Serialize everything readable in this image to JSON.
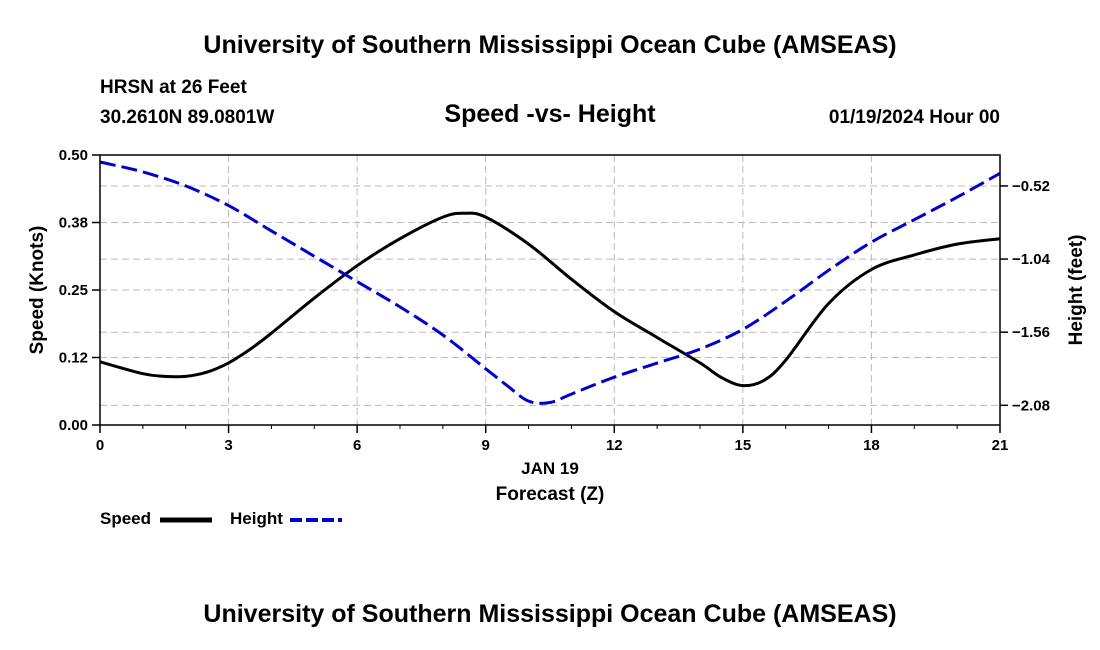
{
  "header": {
    "title": "University of Southern Mississippi Ocean Cube (AMSEAS)",
    "station": "HRSN at 26 Feet",
    "coords": "30.2610N  89.0801W",
    "datetime": "01/19/2024 Hour 00",
    "footer_title": "University of Southern Mississippi Ocean Cube (AMSEAS)"
  },
  "chart_data": {
    "type": "line",
    "title": "Speed -vs- Height",
    "xlabel_date": "JAN 19",
    "xlabel": "Forecast (Z)",
    "ylabel": "Speed (Knots)",
    "y2label": "Height (feet)",
    "xlim": [
      0,
      21
    ],
    "ylim": [
      0,
      0.5
    ],
    "y2lim": [
      -2.22,
      -0.3
    ],
    "x_ticks": [
      0,
      3,
      6,
      9,
      12,
      15,
      18,
      21
    ],
    "x_tick_labels": [
      "0",
      "3",
      "6",
      "9",
      "12",
      "15",
      "18",
      "21"
    ],
    "y_ticks": [
      0,
      0.125,
      0.25,
      0.375,
      0.5
    ],
    "y_tick_labels": [
      "0.00",
      "0.12",
      "0.25",
      "0.38",
      "0.50"
    ],
    "y2_ticks": [
      -2.08,
      -1.56,
      -1.04,
      -0.52
    ],
    "y2_tick_labels": [
      "−2.08",
      "−1.56",
      "−1.04",
      "−0.52"
    ],
    "grid": true,
    "series": [
      {
        "name": "Speed",
        "axis": "left",
        "color": "#000000",
        "dash": "solid",
        "x": [
          0,
          1,
          1.5,
          2,
          2.5,
          3,
          3.5,
          4,
          5,
          6,
          7,
          8,
          8.5,
          9,
          10,
          11,
          12,
          13,
          14,
          14.5,
          15,
          15.5,
          16,
          17,
          18,
          19,
          20,
          21
        ],
        "y": [
          0.117,
          0.095,
          0.09,
          0.09,
          0.098,
          0.115,
          0.14,
          0.17,
          0.235,
          0.295,
          0.345,
          0.385,
          0.392,
          0.385,
          0.335,
          0.27,
          0.21,
          0.162,
          0.115,
          0.088,
          0.073,
          0.083,
          0.12,
          0.225,
          0.288,
          0.315,
          0.335,
          0.345
        ]
      },
      {
        "name": "Height",
        "axis": "right",
        "color": "#0000cc",
        "dash": "dashed",
        "x": [
          0,
          1,
          2,
          3,
          4,
          5,
          6,
          7,
          8,
          9,
          9.5,
          10,
          10.5,
          11,
          12,
          13,
          14,
          15,
          16,
          17,
          18,
          19,
          20,
          21
        ],
        "y": [
          -0.35,
          -0.42,
          -0.52,
          -0.66,
          -0.84,
          -1.02,
          -1.2,
          -1.38,
          -1.58,
          -1.82,
          -1.94,
          -2.05,
          -2.06,
          -2.0,
          -1.88,
          -1.78,
          -1.68,
          -1.54,
          -1.34,
          -1.12,
          -0.92,
          -0.76,
          -0.6,
          -0.43
        ]
      }
    ]
  },
  "legend": {
    "speed_label": "Speed",
    "height_label": "Height"
  }
}
